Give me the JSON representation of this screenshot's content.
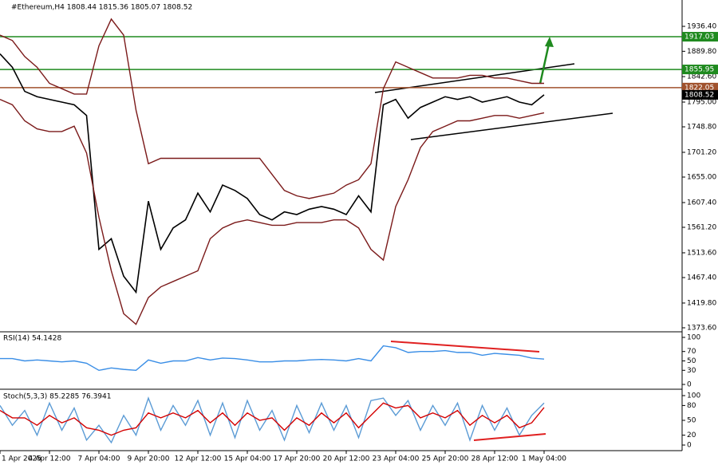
{
  "chart_data": [
    {
      "type": "line",
      "title": "#Ethereum,H4 1808.44 1815.36 1805.07 1808.52",
      "categories": [
        "1 Apr 2025",
        null,
        null,
        null,
        "4 Apr 12:00",
        null,
        null,
        null,
        "7 Apr 04:00",
        null,
        null,
        null,
        "9 Apr 20:00",
        null,
        null,
        null,
        "12 Apr 12:00",
        null,
        null,
        null,
        "15 Apr 04:00",
        null,
        null,
        null,
        "17 Apr 20:00",
        null,
        null,
        null,
        "20 Apr 12:00",
        null,
        null,
        null,
        "23 Apr 04:00",
        null,
        null,
        null,
        "25 Apr 20:00",
        null,
        null,
        null,
        "28 Apr 12:00",
        null,
        null,
        null,
        "1 May 04:00"
      ],
      "series": [
        {
          "color": "#000000",
          "values": [
            1885,
            1860,
            1815,
            1805,
            1800,
            1795,
            1790,
            1770,
            1520,
            1540,
            1470,
            1440,
            1610,
            1520,
            1560,
            1575,
            1625,
            1590,
            1640,
            1630,
            1615,
            1585,
            1575,
            1590,
            1585,
            1595,
            1600,
            1595,
            1585,
            1620,
            1590,
            1790,
            1800,
            1765,
            1785,
            1795,
            1805,
            1800,
            1805,
            1795,
            1800,
            1805,
            1795,
            1790,
            1808.52
          ]
        },
        {
          "color": "#7b1a1a",
          "values": [
            1920,
            1910,
            1880,
            1860,
            1830,
            1820,
            1810,
            1810,
            1900,
            1950,
            1920,
            1780,
            1680,
            1690,
            1690,
            1690,
            1690,
            1690,
            1690,
            1690,
            1690,
            1690,
            1660,
            1630,
            1620,
            1615,
            1620,
            1625,
            1640,
            1650,
            1680,
            1820,
            1870,
            1860,
            1850,
            1840,
            1840,
            1840,
            1845,
            1845,
            1840,
            1840,
            1835,
            1830,
            1830
          ]
        },
        {
          "color": "#7b1a1a",
          "values": [
            1800,
            1790,
            1760,
            1745,
            1740,
            1740,
            1750,
            1700,
            1580,
            1480,
            1400,
            1380,
            1430,
            1450,
            1460,
            1470,
            1480,
            1540,
            1560,
            1570,
            1575,
            1570,
            1565,
            1565,
            1570,
            1570,
            1570,
            1575,
            1575,
            1560,
            1520,
            1500,
            1600,
            1650,
            1710,
            1740,
            1750,
            1760,
            1760,
            1765,
            1770,
            1770,
            1765,
            1770,
            1775
          ]
        }
      ],
      "levels": [
        {
          "value": 1917.03,
          "color": "#1f8a1f"
        },
        {
          "value": 1855.95,
          "color": "#1f8a1f"
        },
        {
          "value": 1822.05,
          "color": "#a0522d"
        }
      ],
      "ylim": [
        1367.6,
        1985.6
      ],
      "yticks": [
        {
          "value": 1936.4,
          "label": "1936.40"
        },
        {
          "value": 1889.8,
          "label": "1889.80"
        },
        {
          "value": 1842.6,
          "label": "1842.60"
        },
        {
          "value": 1795,
          "label": "1795.00"
        },
        {
          "value": 1748.8,
          "label": "1748.80"
        },
        {
          "value": 1701.2,
          "label": "1701.20"
        },
        {
          "value": 1655,
          "label": "1655.00"
        },
        {
          "value": 1607.4,
          "label": "1607.40"
        },
        {
          "value": 1561.2,
          "label": "1561.20"
        },
        {
          "value": 1513.6,
          "label": "1513.60"
        },
        {
          "value": 1467.4,
          "label": "1467.40"
        },
        {
          "value": 1419.8,
          "label": "1419.80"
        },
        {
          "value": 1373.6,
          "label": "1373.60"
        }
      ]
    },
    {
      "type": "line",
      "title": "RSI(14) 54.1428",
      "series": [
        {
          "color": "#3a8ee6",
          "values": [
            55,
            55,
            50,
            52,
            50,
            48,
            50,
            45,
            30,
            35,
            32,
            30,
            52,
            45,
            50,
            50,
            57,
            52,
            56,
            55,
            52,
            48,
            48,
            50,
            50,
            52,
            53,
            52,
            50,
            55,
            50,
            82,
            78,
            68,
            70,
            70,
            72,
            68,
            68,
            62,
            66,
            64,
            62,
            56,
            54
          ]
        }
      ],
      "ylim": [
        0,
        100
      ],
      "yticks": [
        100,
        70,
        50,
        30,
        0
      ]
    },
    {
      "type": "line",
      "title": "Stoch(5,3,3) 85.2285 76.3941",
      "series": [
        {
          "color": "#5b9bd5",
          "values": [
            80,
            40,
            70,
            20,
            85,
            30,
            75,
            10,
            40,
            5,
            60,
            20,
            95,
            30,
            80,
            40,
            90,
            20,
            85,
            15,
            90,
            30,
            70,
            10,
            80,
            25,
            85,
            30,
            80,
            15,
            90,
            95,
            60,
            90,
            30,
            80,
            40,
            85,
            10,
            80,
            30,
            75,
            20,
            60,
            85
          ]
        },
        {
          "color": "#d40000",
          "values": [
            70,
            55,
            55,
            40,
            60,
            45,
            55,
            35,
            30,
            20,
            30,
            35,
            65,
            55,
            65,
            55,
            70,
            45,
            65,
            40,
            65,
            50,
            55,
            30,
            55,
            40,
            65,
            45,
            65,
            35,
            60,
            85,
            75,
            80,
            55,
            65,
            55,
            70,
            40,
            60,
            45,
            60,
            35,
            45,
            76
          ]
        }
      ],
      "ylim": [
        0,
        100
      ],
      "yticks": [
        100,
        80,
        50,
        20,
        0
      ]
    }
  ]
}
